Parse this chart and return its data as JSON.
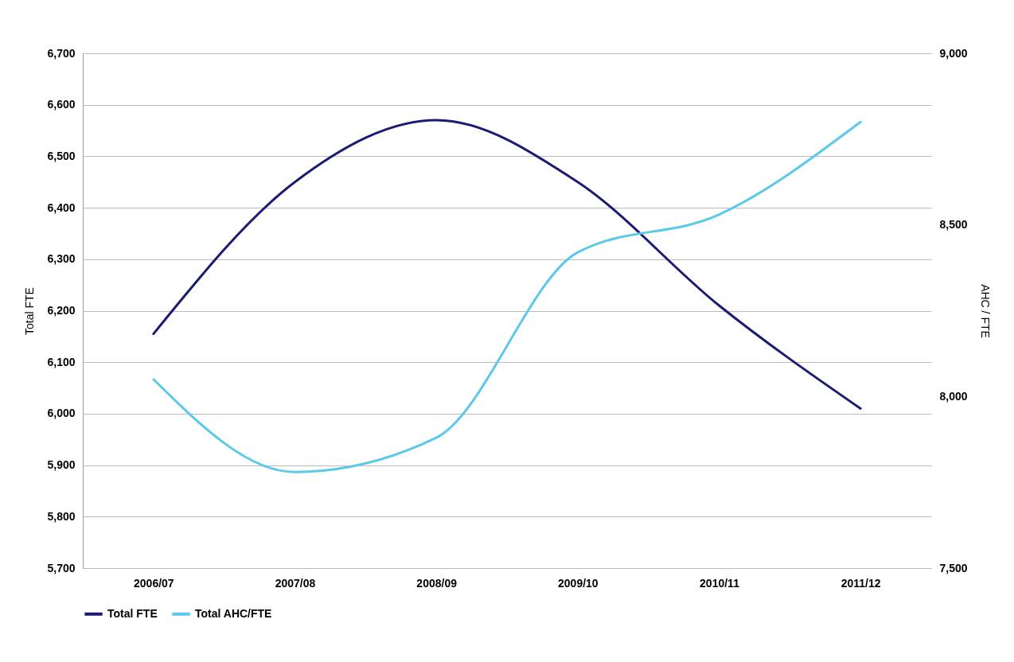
{
  "chart_data": {
    "type": "line",
    "xlabel": null,
    "ylabel": "Total FTE",
    "y2label": "AHC / FTE",
    "categories": [
      "2006/07",
      "2007/08",
      "2008/09",
      "2009/10",
      "2010/11",
      "2011/12"
    ],
    "series": [
      {
        "name": "Total FTE",
        "color": "#1c1c72",
        "values": [
          6155,
          6450,
          6570,
          6450,
          6210,
          6010
        ]
      },
      {
        "name": "Total AHC/FTE",
        "color": "#5cc8ea",
        "axis": "y2",
        "values": [
          8050,
          7780,
          7880,
          8420,
          8530,
          8800
        ]
      }
    ],
    "ylim": [
      5700,
      6700
    ],
    "yticks": [
      {
        "value": 5700,
        "label": "5,700"
      },
      {
        "value": 5800,
        "label": "5,800"
      },
      {
        "value": 5900,
        "label": "5,900"
      },
      {
        "value": 6000,
        "label": "6,000"
      },
      {
        "value": 6100,
        "label": "6,100"
      },
      {
        "value": 6200,
        "label": "6,200"
      },
      {
        "value": 6300,
        "label": "6,300"
      },
      {
        "value": 6400,
        "label": "6,400"
      },
      {
        "value": 6500,
        "label": "6,500"
      },
      {
        "value": 6600,
        "label": "6,600"
      },
      {
        "value": 6700,
        "label": "6,700"
      }
    ],
    "y2lim": [
      7500,
      9000
    ],
    "y2ticks": [
      {
        "value": 7500,
        "label": "7,500"
      },
      {
        "value": 8000,
        "label": "8,000"
      },
      {
        "value": 8500,
        "label": "8,500"
      },
      {
        "value": 9000,
        "label": "9,000"
      }
    ],
    "grid": "y",
    "legend": "bottom",
    "marker": "none",
    "line_style": "solid"
  }
}
